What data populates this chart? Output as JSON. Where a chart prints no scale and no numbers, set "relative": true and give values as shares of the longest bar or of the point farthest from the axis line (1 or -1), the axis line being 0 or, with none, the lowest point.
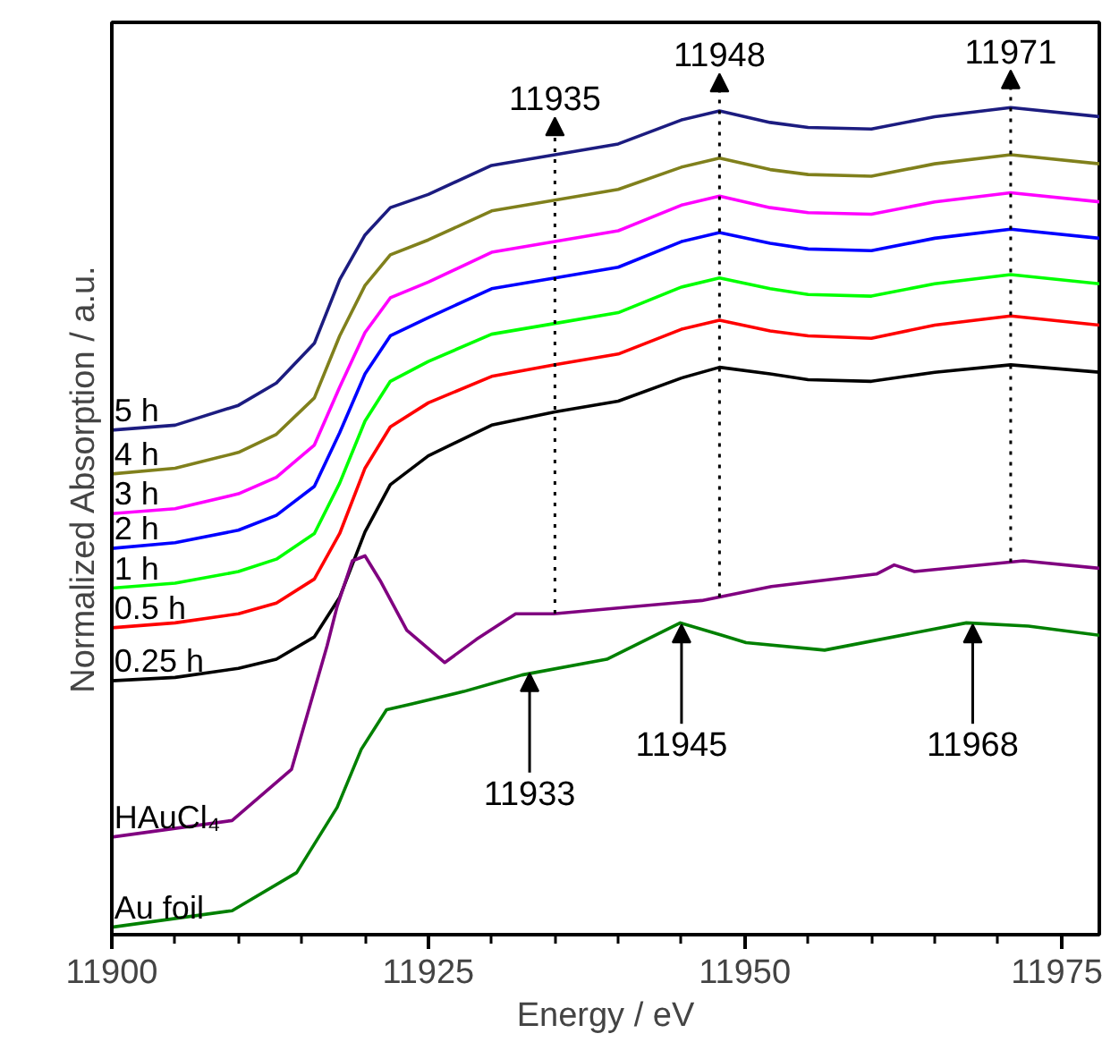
{
  "chart_data": {
    "type": "line",
    "relative": true,
    "xlabel": "Energy / eV",
    "ylabel": "Normalized Absorption / a.u.",
    "x": [
      11900,
      11905,
      11910,
      11913,
      11916,
      11918,
      11920,
      11922,
      11925,
      11930,
      11935,
      11940,
      11945,
      11948,
      11952,
      11955,
      11960,
      11965,
      11971,
      11978
    ],
    "xlim": [
      11900,
      11978
    ],
    "xticks": [
      11900,
      11925,
      11950,
      11975
    ],
    "legend": false,
    "grid": false,
    "line_style": "solid",
    "series": [
      {
        "name": "5 h",
        "color": "#1c1c80",
        "values": [
          0.61,
          0.616,
          0.64,
          0.667,
          0.715,
          0.792,
          0.846,
          0.879,
          0.895,
          0.93,
          0.943,
          0.956,
          0.985,
          0.996,
          0.982,
          0.976,
          0.974,
          0.989,
          1.0,
          0.989
        ]
      },
      {
        "name": "4 h",
        "color": "#80801c",
        "values": [
          0.557,
          0.564,
          0.583,
          0.605,
          0.649,
          0.724,
          0.785,
          0.822,
          0.84,
          0.875,
          0.888,
          0.901,
          0.928,
          0.939,
          0.925,
          0.919,
          0.917,
          0.932,
          0.943,
          0.932
        ]
      },
      {
        "name": "3 h",
        "color": "#ff00ff",
        "values": [
          0.509,
          0.515,
          0.533,
          0.553,
          0.592,
          0.662,
          0.728,
          0.77,
          0.789,
          0.825,
          0.838,
          0.851,
          0.882,
          0.893,
          0.879,
          0.873,
          0.871,
          0.886,
          0.897,
          0.886
        ]
      },
      {
        "name": "2 h",
        "color": "#0000ff",
        "values": [
          0.467,
          0.474,
          0.489,
          0.507,
          0.542,
          0.607,
          0.678,
          0.724,
          0.746,
          0.781,
          0.794,
          0.807,
          0.838,
          0.849,
          0.836,
          0.829,
          0.827,
          0.842,
          0.853,
          0.842
        ]
      },
      {
        "name": "1 h",
        "color": "#00ff00",
        "values": [
          0.419,
          0.425,
          0.439,
          0.454,
          0.485,
          0.546,
          0.621,
          0.669,
          0.693,
          0.726,
          0.739,
          0.752,
          0.783,
          0.794,
          0.781,
          0.774,
          0.772,
          0.787,
          0.798,
          0.787
        ]
      },
      {
        "name": "0.5 h",
        "color": "#ff0000",
        "values": [
          0.371,
          0.377,
          0.388,
          0.401,
          0.43,
          0.485,
          0.564,
          0.614,
          0.643,
          0.675,
          0.689,
          0.702,
          0.732,
          0.743,
          0.73,
          0.724,
          0.721,
          0.737,
          0.748,
          0.737
        ]
      },
      {
        "name": "0.25 h",
        "color": "#000000",
        "values": [
          0.307,
          0.311,
          0.322,
          0.333,
          0.36,
          0.408,
          0.487,
          0.544,
          0.579,
          0.616,
          0.632,
          0.645,
          0.673,
          0.686,
          0.678,
          0.671,
          0.669,
          0.68,
          0.689,
          0.68
        ]
      },
      {
        "name": "HAuCl₄",
        "color": "#800080",
        "x": [
          11900,
          11909.5,
          11914.2,
          11917,
          11917.8,
          11919,
          11920,
          11921.2,
          11923.3,
          11926.3,
          11928.8,
          11931.9,
          11934.9,
          11940,
          11946.6,
          11952.1,
          11960.4,
          11961.8,
          11963.4,
          11972,
          11978
        ],
        "values": [
          0.118,
          0.138,
          0.2,
          0.349,
          0.397,
          0.452,
          0.458,
          0.428,
          0.368,
          0.329,
          0.357,
          0.388,
          0.388,
          0.395,
          0.404,
          0.421,
          0.436,
          0.447,
          0.439,
          0.452,
          0.443
        ]
      },
      {
        "name": "Au foil",
        "color": "#008000",
        "x": [
          11900,
          11909.5,
          11914.6,
          11917.8,
          11919.7,
          11921.7,
          11923.7,
          11927.8,
          11932.4,
          11939.1,
          11944.9,
          11948.2,
          11950.1,
          11956.3,
          11967.5,
          11972.4,
          11978
        ],
        "values": [
          0.009,
          0.029,
          0.075,
          0.154,
          0.224,
          0.272,
          0.279,
          0.294,
          0.314,
          0.333,
          0.377,
          0.362,
          0.353,
          0.344,
          0.377,
          0.373,
          0.362
        ]
      }
    ],
    "annotations": [
      {
        "text": "11935",
        "x": 11935,
        "y": 0.943
      },
      {
        "text": "11948",
        "x": 11948,
        "y": 0.996
      },
      {
        "text": "11971",
        "x": 11971,
        "y": 1.0
      },
      {
        "text": "11933",
        "x": 11933,
        "y": 0.316
      },
      {
        "text": "11945",
        "x": 11945,
        "y": 0.375
      },
      {
        "text": "11968",
        "x": 11968,
        "y": 0.375
      }
    ]
  }
}
